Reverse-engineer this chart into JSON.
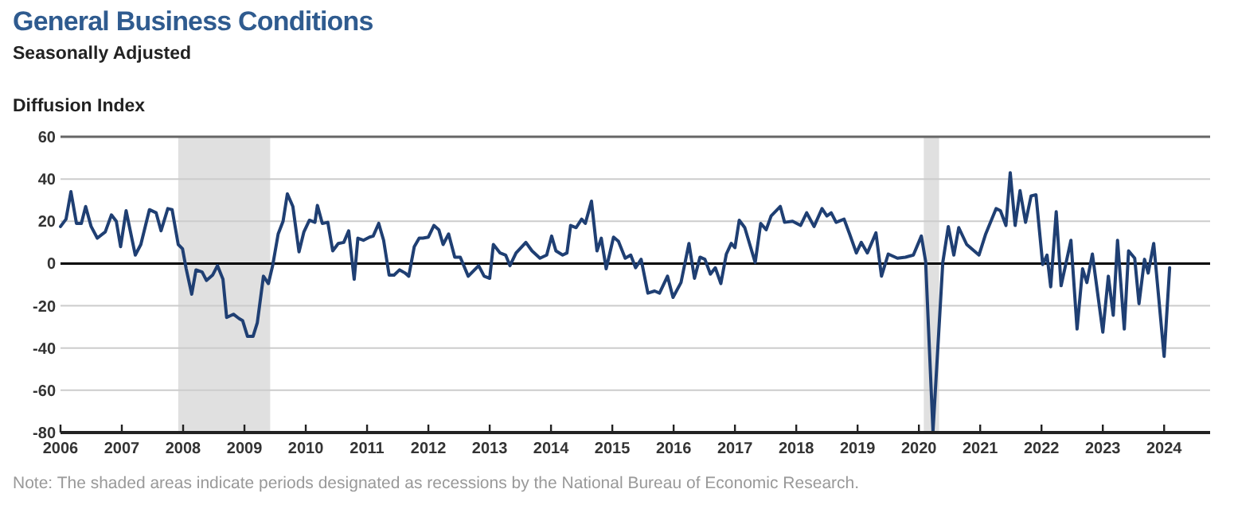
{
  "chart_data": {
    "type": "line",
    "title": "General Business Conditions",
    "subtitle": "Seasonally Adjusted",
    "ylabel": "Diffusion Index",
    "annotations": [
      "Note: The shaded areas indicate periods designated as recessions by the National Bureau of Economic Research."
    ],
    "xlim": [
      2006,
      2024.75
    ],
    "xticks": [
      2006,
      2007,
      2008,
      2009,
      2010,
      2011,
      2012,
      2013,
      2014,
      2015,
      2016,
      2017,
      2018,
      2019,
      2020,
      2021,
      2022,
      2023,
      2024
    ],
    "ylim": [
      -80,
      60
    ],
    "yticks": [
      -80,
      -60,
      -40,
      -20,
      0,
      20,
      40,
      60
    ],
    "grid": "y",
    "marker": "none",
    "line_style": "solid",
    "bands": [
      {
        "axis": "x",
        "from": 2007.92,
        "to": 2009.42,
        "color": "#e0e0e0"
      },
      {
        "axis": "x",
        "from": 2020.08,
        "to": 2020.33,
        "color": "#e0e0e0"
      }
    ],
    "ref_lines": [
      {
        "axis": "y",
        "value": 0,
        "color": "#000000"
      }
    ],
    "series": [
      {
        "color": "#1f3f73",
        "x": [
          2006.0,
          2006.09,
          2006.17,
          2006.26,
          2006.34,
          2006.41,
          2006.5,
          2006.6,
          2006.73,
          2006.83,
          2006.91,
          2006.98,
          2007.07,
          2007.22,
          2007.31,
          2007.45,
          2007.56,
          2007.64,
          2007.75,
          2007.82,
          2007.92,
          2007.99,
          2008.05,
          2008.14,
          2008.21,
          2008.31,
          2008.38,
          2008.48,
          2008.56,
          2008.65,
          2008.71,
          2008.82,
          2008.91,
          2008.97,
          2009.05,
          2009.14,
          2009.21,
          2009.31,
          2009.39,
          2009.46,
          2009.55,
          2009.63,
          2009.7,
          2009.79,
          2009.89,
          2009.97,
          2010.06,
          2010.15,
          2010.19,
          2010.27,
          2010.36,
          2010.44,
          2010.53,
          2010.62,
          2010.7,
          2010.79,
          2010.85,
          2010.94,
          2011.04,
          2011.1,
          2011.19,
          2011.27,
          2011.36,
          2011.44,
          2011.53,
          2011.62,
          2011.68,
          2011.77,
          2011.85,
          2011.91,
          2012.0,
          2012.09,
          2012.17,
          2012.24,
          2012.33,
          2012.43,
          2012.52,
          2012.65,
          2012.82,
          2012.91,
          2013.0,
          2013.06,
          2013.17,
          2013.26,
          2013.33,
          2013.43,
          2013.59,
          2013.69,
          2013.82,
          2013.93,
          2014.01,
          2014.08,
          2014.19,
          2014.26,
          2014.32,
          2014.41,
          2014.5,
          2014.56,
          2014.66,
          2014.75,
          2014.82,
          2014.9,
          2015.02,
          2015.1,
          2015.21,
          2015.3,
          2015.38,
          2015.47,
          2015.58,
          2015.69,
          2015.77,
          2015.9,
          2015.99,
          2016.12,
          2016.25,
          2016.34,
          2016.43,
          2016.51,
          2016.6,
          2016.68,
          2016.77,
          2016.86,
          2016.94,
          2017.0,
          2017.07,
          2017.16,
          2017.33,
          2017.42,
          2017.51,
          2017.59,
          2017.74,
          2017.81,
          2017.94,
          2018.07,
          2018.17,
          2018.29,
          2018.42,
          2018.5,
          2018.57,
          2018.65,
          2018.78,
          2018.87,
          2018.98,
          2019.06,
          2019.16,
          2019.3,
          2019.39,
          2019.5,
          2019.65,
          2019.78,
          2019.91,
          2020.04,
          2020.11,
          2020.23,
          2020.39,
          2020.48,
          2020.57,
          2020.65,
          2020.78,
          2020.98,
          2021.09,
          2021.26,
          2021.33,
          2021.42,
          2021.49,
          2021.57,
          2021.65,
          2021.74,
          2021.83,
          2021.91,
          2022.02,
          2022.09,
          2022.15,
          2022.24,
          2022.32,
          2022.48,
          2022.58,
          2022.67,
          2022.74,
          2022.83,
          2023.0,
          2023.09,
          2023.17,
          2023.24,
          2023.35,
          2023.42,
          2023.52,
          2023.59,
          2023.68,
          2023.74,
          2023.83,
          2024.0,
          2024.09
        ],
        "values": [
          17.5,
          21,
          34,
          19,
          19,
          27,
          17.5,
          12,
          15,
          23,
          20,
          8,
          25,
          4,
          9,
          25.5,
          24,
          15.5,
          26,
          25.5,
          9,
          7,
          -2.5,
          -14.5,
          -3,
          -4,
          -8,
          -5.5,
          -1,
          -7.5,
          -25.5,
          -24,
          -26,
          -27,
          -34.5,
          -34.5,
          -28,
          -6,
          -9.5,
          -1,
          14,
          20,
          33,
          27,
          5.5,
          15,
          20.5,
          19.5,
          27.5,
          19,
          19.5,
          6,
          9.5,
          10,
          15.5,
          -7.5,
          12,
          11,
          12.5,
          13,
          19,
          11,
          -5.5,
          -5.5,
          -3,
          -4.5,
          -6,
          8,
          12,
          12,
          12.5,
          18,
          16,
          9,
          14,
          3,
          3,
          -6,
          -1,
          -6,
          -7,
          9,
          5,
          4,
          -1,
          5,
          10,
          6,
          2.5,
          4,
          13,
          6,
          4,
          5,
          18,
          17,
          21,
          19,
          29.5,
          6,
          12,
          -2.5,
          12.5,
          10.5,
          2.5,
          4,
          -2,
          2,
          -14,
          -13,
          -14,
          -6,
          -16,
          -9,
          9.5,
          -7,
          3,
          2,
          -5,
          -2,
          -9.5,
          4.5,
          9.5,
          7.5,
          20.5,
          17,
          0.5,
          19,
          16,
          22.5,
          27,
          19.5,
          20,
          18,
          24,
          17.5,
          26,
          22.5,
          24,
          19.5,
          21,
          14,
          5,
          10,
          5,
          14.5,
          -6,
          4.5,
          2.5,
          3,
          4,
          13,
          1,
          -79.5,
          0.5,
          17.5,
          4,
          17,
          9,
          4,
          14,
          26,
          25,
          18,
          43,
          18,
          34.5,
          19.5,
          32,
          32.5,
          -0.5,
          4,
          -11,
          24.5,
          -10.5,
          11,
          -31,
          -2.5,
          -9,
          4.5,
          -32.5,
          -6,
          -24.5,
          11,
          -31,
          6,
          2.5,
          -19,
          2,
          -4.5,
          9.5,
          -44,
          -2
        ]
      }
    ]
  }
}
